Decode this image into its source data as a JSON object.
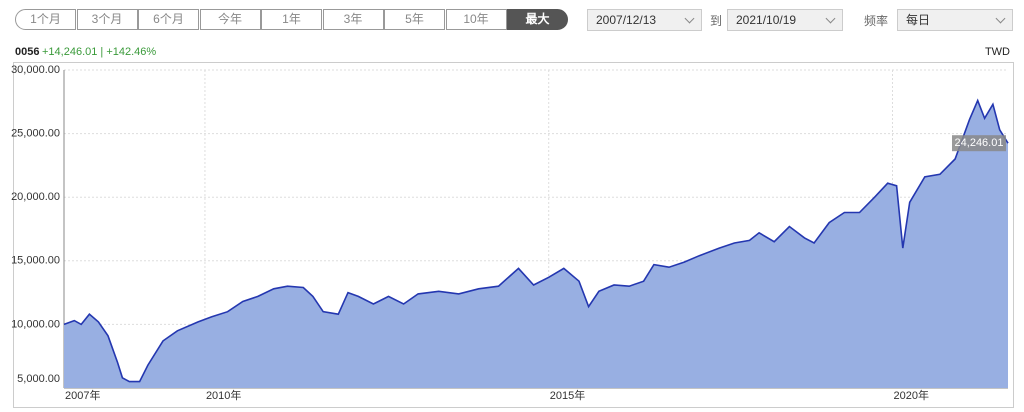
{
  "controls": {
    "range_buttons": [
      "1个月",
      "3个月",
      "6个月",
      "今年",
      "1年",
      "3年",
      "5年",
      "10年",
      "最大"
    ],
    "start_date": "2007/12/13",
    "to_label": "到",
    "end_date": "2021/10/19",
    "frequency_label": "频率",
    "frequency": "每日"
  },
  "summary": {
    "symbol": "0056",
    "change": "+14,246.01 | +142.46%",
    "currency": "TWD"
  },
  "chart_data": {
    "type": "area",
    "line_color": "#2437b0",
    "fill_color": "#98afe2",
    "grid": true,
    "x": [
      2007.95,
      2008.1,
      2008.2,
      2008.32,
      2008.45,
      2008.59,
      2008.73,
      2008.8,
      2008.9,
      2009.05,
      2009.17,
      2009.39,
      2009.6,
      2009.9,
      2010.1,
      2010.33,
      2010.55,
      2010.77,
      2011.0,
      2011.2,
      2011.43,
      2011.57,
      2011.72,
      2011.94,
      2012.08,
      2012.23,
      2012.45,
      2012.67,
      2012.89,
      2013.1,
      2013.4,
      2013.69,
      2013.98,
      2014.27,
      2014.56,
      2014.78,
      2015.0,
      2015.22,
      2015.44,
      2015.58,
      2015.73,
      2015.95,
      2016.17,
      2016.38,
      2016.53,
      2016.75,
      2016.97,
      2017.19,
      2017.48,
      2017.7,
      2017.92,
      2018.06,
      2018.28,
      2018.5,
      2018.72,
      2018.86,
      2019.08,
      2019.3,
      2019.52,
      2019.74,
      2019.93,
      2020.06,
      2020.15,
      2020.25,
      2020.47,
      2020.69,
      2020.91,
      2021.12,
      2021.24,
      2021.34,
      2021.46,
      2021.56,
      2021.68
    ],
    "values": [
      10000,
      10300,
      10000,
      10800,
      10200,
      9100,
      7000,
      5800,
      5500,
      5500,
      6800,
      8700,
      9500,
      10200,
      10600,
      11000,
      11800,
      12200,
      12800,
      13000,
      12900,
      12200,
      11000,
      10800,
      12500,
      12200,
      11600,
      12200,
      11600,
      12400,
      12600,
      12400,
      12800,
      13000,
      14400,
      13100,
      13700,
      14400,
      13400,
      11400,
      12600,
      13100,
      13000,
      13400,
      14700,
      14500,
      14900,
      15400,
      16000,
      16400,
      16600,
      17200,
      16500,
      17700,
      16800,
      16400,
      18000,
      18800,
      18800,
      20000,
      21100,
      20900,
      16000,
      19600,
      21600,
      21800,
      23000,
      26100,
      27600,
      26200,
      27300,
      25300,
      24246.01
    ],
    "last_label": {
      "value": 24246.01,
      "label": "24,246.01"
    },
    "xlim": [
      2007.95,
      2021.68
    ],
    "xticks": [
      {
        "value": 2007.95,
        "label": "2007年"
      },
      {
        "value": 2010,
        "label": "2010年"
      },
      {
        "value": 2015,
        "label": "2015年"
      },
      {
        "value": 2020,
        "label": "2020年"
      }
    ],
    "ylim": [
      5000,
      30000
    ],
    "yticks": [
      {
        "value": 5000,
        "label": "5,000.00"
      },
      {
        "value": 10000,
        "label": "10,000.00"
      },
      {
        "value": 15000,
        "label": "15,000.00"
      },
      {
        "value": 20000,
        "label": "20,000.00"
      },
      {
        "value": 25000,
        "label": "25,000.00"
      },
      {
        "value": 30000,
        "label": "30,000.00"
      }
    ]
  }
}
